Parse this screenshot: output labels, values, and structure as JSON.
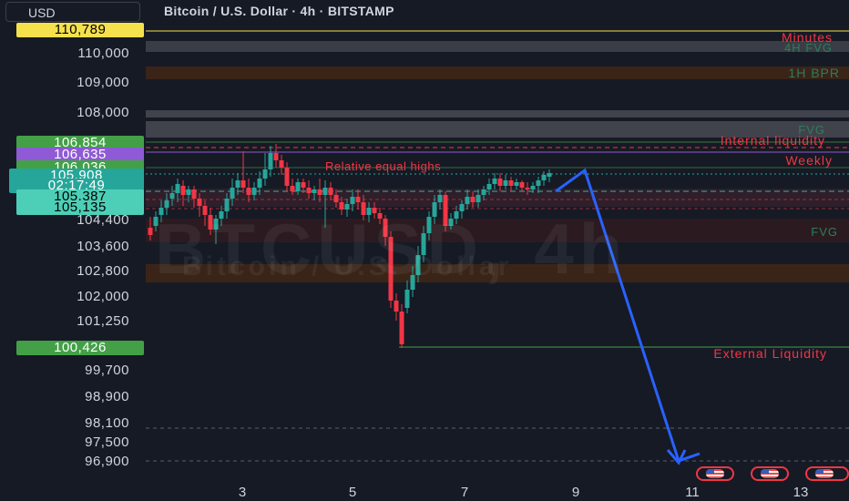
{
  "header": {
    "currency": "USD",
    "title": "Bitcoin / U.S. Dollar · 4h · BITSTAMP"
  },
  "watermark": {
    "symbol": "BTCUSD, 4h",
    "name": "Bitcoin / U.S. Dollar"
  },
  "price_axis": {
    "labels": [
      "110,000",
      "109,000",
      "108,000",
      "104,400",
      "103,600",
      "102,800",
      "102,000",
      "101,250",
      "99,700",
      "98,900",
      "98,100",
      "97,500",
      "96,900"
    ]
  },
  "price_tags": [
    {
      "text": "110,789",
      "bg": "#f5e14c",
      "fg": "#000000"
    },
    {
      "text": "106,854",
      "bg": "#43a047",
      "fg": "#ffffff"
    },
    {
      "text": "106,635",
      "bg": "#8e5ad6",
      "fg": "#ffffff"
    },
    {
      "text": "106,036",
      "bg": "#43a047",
      "fg": "#ffffff"
    },
    {
      "text": "105,908",
      "bg": "#26a69a",
      "fg": "#ffffff"
    },
    {
      "text": "02:17:49",
      "bg": "#26a69a",
      "fg": "#ffffff"
    },
    {
      "text": "105,387",
      "bg": "#4dcfb7",
      "fg": "#000000"
    },
    {
      "text": "105,135",
      "bg": "#4dcfb7",
      "fg": "#000000"
    },
    {
      "text": "100,426",
      "bg": "#43a047",
      "fg": "#ffffff"
    }
  ],
  "time_axis": {
    "labels": [
      "3",
      "5",
      "7",
      "9",
      "11",
      "13"
    ]
  },
  "annotations": {
    "minutes": "Minutes",
    "fvg_4h": "4H FVG",
    "bpr_1h": "1H BPR",
    "fvg_top": "FVG",
    "internal_liquidity": "Internal liquidity",
    "weekly": "Weekly",
    "relative_equal_highs": "Relative equal highs",
    "fvg_mid": "FVG",
    "external_liquidity": "External Liquidity"
  },
  "colors": {
    "bull": "#26a69a",
    "bear": "#f23645",
    "projection": "#2962ff",
    "background": "#161a25",
    "level_green": "#43a047",
    "level_purple": "#8e5ad6",
    "annotation_red": "#f23645",
    "annotation_green": "#2e7d5a"
  },
  "events": {
    "flag_icon": "us-flag-icon",
    "count": 3
  }
}
